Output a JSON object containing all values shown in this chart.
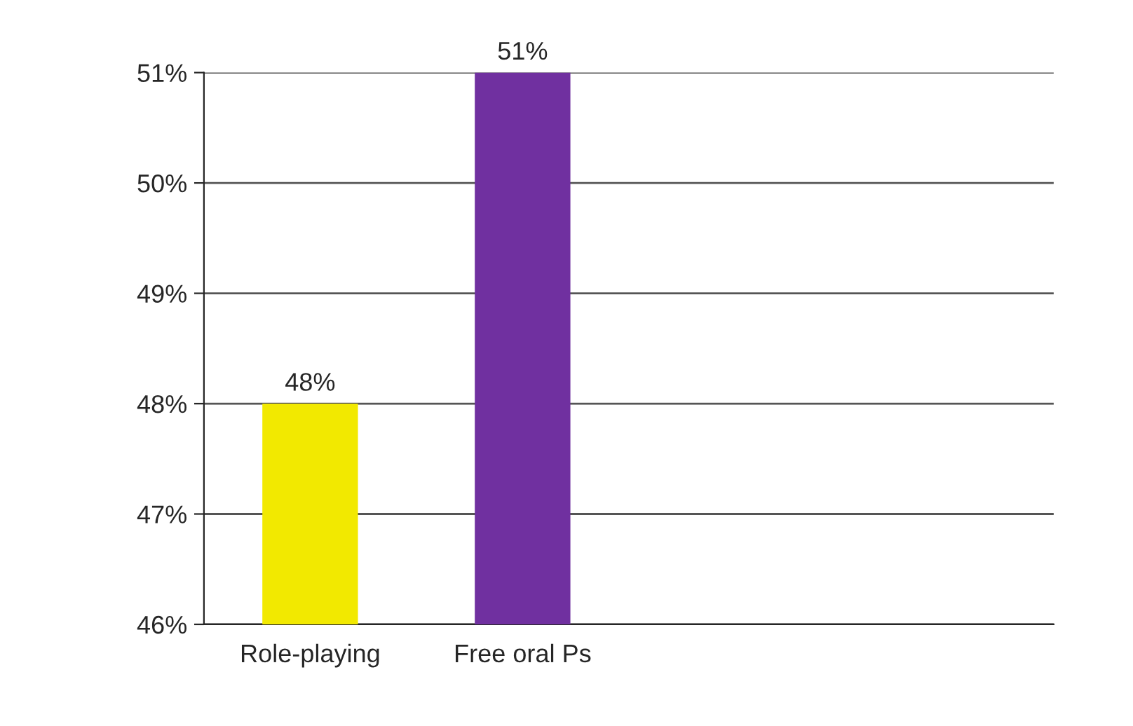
{
  "chart_data": {
    "type": "bar",
    "categories": [
      "Role-playing",
      "Free oral Ps",
      null,
      null
    ],
    "values": [
      48,
      51,
      null,
      null
    ],
    "colors": [
      "#f2e900",
      "#7030a0",
      "#7030a0",
      "#7030a0"
    ],
    "value_labels": [
      "48%",
      "51%",
      null,
      null
    ],
    "ylim": [
      46,
      51
    ],
    "yticks": [
      {
        "value": 46,
        "label": "46%"
      },
      {
        "value": 47,
        "label": "47%"
      },
      {
        "value": 48,
        "label": "48%"
      },
      {
        "value": 49,
        "label": "49%"
      },
      {
        "value": 50,
        "label": "50%"
      },
      {
        "value": 51,
        "label": "51%"
      }
    ],
    "grid": "y"
  }
}
